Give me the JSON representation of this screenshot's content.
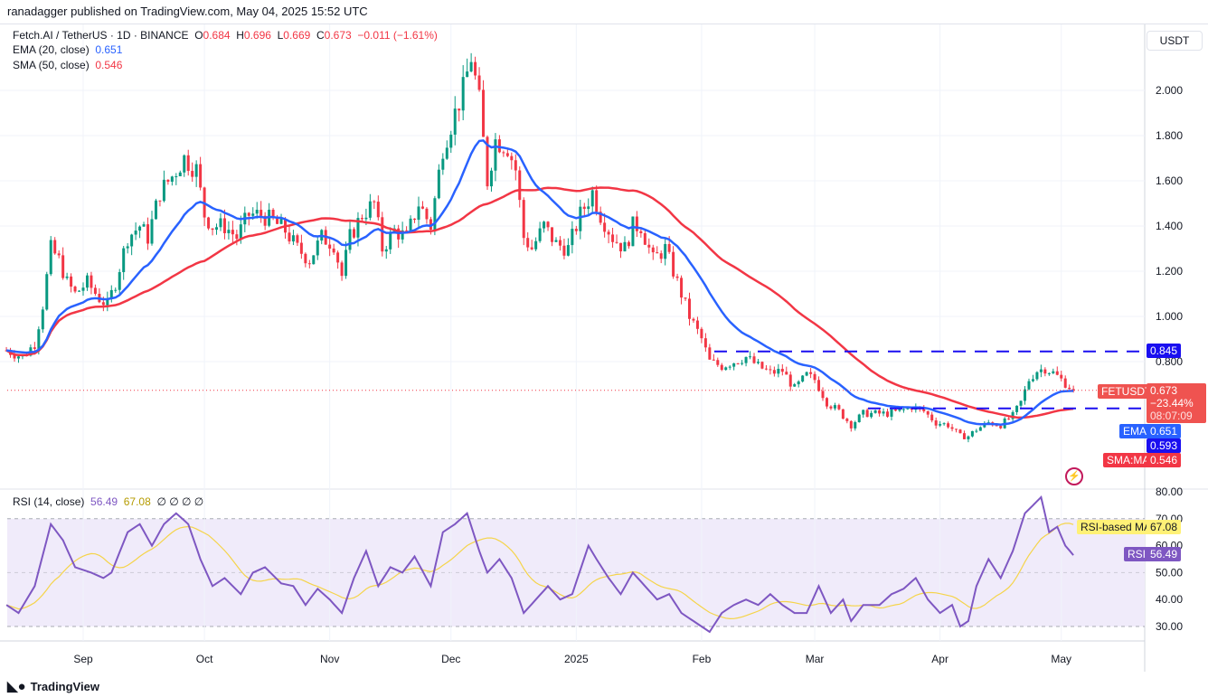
{
  "published": "ranadagger published on TradingView.com, May 04, 2025 15:52 UTC",
  "symbol_line": {
    "name": "Fetch.AI / TetherUS · 1D · BINANCE",
    "o_label": "O",
    "o": "0.684",
    "h_label": "H",
    "h": "0.696",
    "l_label": "L",
    "l": "0.669",
    "c_label": "C",
    "c": "0.673",
    "change": "−0.011 (−1.61%)"
  },
  "ema_legend": {
    "label": "EMA (20, close)",
    "value": "0.651"
  },
  "sma_legend": {
    "label": "SMA (50, close)",
    "value": "0.546"
  },
  "rsi_legend": {
    "label": "RSI (14, close)",
    "value": "56.49",
    "ma_value": "67.08",
    "extra": "∅ ∅ ∅ ∅"
  },
  "currency": "USDT",
  "tags": {
    "level_high": "0.845",
    "symbol": "FETUSDT",
    "price": "0.673",
    "change_pct": "−23.44%",
    "countdown": "08:07:09",
    "ema_label": "EMA",
    "ema": "0.651",
    "level_low": "0.593",
    "sma_label": "SMA:MA",
    "sma": "0.546",
    "rsi_ma_label": "RSI-based MA",
    "rsi_ma": "67.08",
    "rsi_label": "RSI",
    "rsi": "56.49"
  },
  "footer_logo": "TradingView",
  "colors": {
    "up": "#089981",
    "down": "#f23645",
    "ema": "#2962ff",
    "sma": "#f23645",
    "level": "#1a0ff0",
    "rsi": "#7e57c2",
    "rsi_ma": "#f5d44a",
    "rsi_band": "#f0ebfa"
  },
  "chart_data": [
    {
      "type": "candlestick",
      "pane": "price",
      "y_ticks": [
        "2.000",
        "1.800",
        "1.600",
        "1.400",
        "1.200",
        "1.000",
        "0.800"
      ],
      "ylim": [
        0.4,
        2.3
      ],
      "x_ticks": [
        [
          "2024-09-01",
          "Sep"
        ],
        [
          "2024-10-01",
          "Oct"
        ],
        [
          "2024-11-01",
          "Nov"
        ],
        [
          "2024-12-01",
          "Dec"
        ],
        [
          "2025-01-01",
          "2025"
        ],
        [
          "2025-02-01",
          "Feb"
        ],
        [
          "2025-03-01",
          "Mar"
        ],
        [
          "2025-04-01",
          "Apr"
        ],
        [
          "2025-05-01",
          "May"
        ]
      ],
      "horizontal_levels": [
        0.845,
        0.593
      ],
      "last_price": 0.673,
      "close_keypoints": [
        [
          "2024-08-13",
          0.85
        ],
        [
          "2024-08-17",
          0.82
        ],
        [
          "2024-08-20",
          0.88
        ],
        [
          "2024-08-22",
          1.05
        ],
        [
          "2024-08-24",
          1.3
        ],
        [
          "2024-08-26",
          1.25
        ],
        [
          "2024-08-28",
          1.15
        ],
        [
          "2024-08-30",
          1.1
        ],
        [
          "2024-09-02",
          1.15
        ],
        [
          "2024-09-05",
          1.08
        ],
        [
          "2024-09-07",
          1.05
        ],
        [
          "2024-09-09",
          1.15
        ],
        [
          "2024-09-12",
          1.35
        ],
        [
          "2024-09-15",
          1.4
        ],
        [
          "2024-09-17",
          1.35
        ],
        [
          "2024-09-20",
          1.55
        ],
        [
          "2024-09-23",
          1.62
        ],
        [
          "2024-09-26",
          1.7
        ],
        [
          "2024-09-29",
          1.65
        ],
        [
          "2024-10-01",
          1.45
        ],
        [
          "2024-10-03",
          1.4
        ],
        [
          "2024-10-06",
          1.4
        ],
        [
          "2024-10-09",
          1.35
        ],
        [
          "2024-10-12",
          1.45
        ],
        [
          "2024-10-15",
          1.45
        ],
        [
          "2024-10-18",
          1.42
        ],
        [
          "2024-10-21",
          1.38
        ],
        [
          "2024-10-24",
          1.3
        ],
        [
          "2024-10-27",
          1.25
        ],
        [
          "2024-10-30",
          1.35
        ],
        [
          "2024-11-02",
          1.32
        ],
        [
          "2024-11-04",
          1.18
        ],
        [
          "2024-11-06",
          1.35
        ],
        [
          "2024-11-09",
          1.45
        ],
        [
          "2024-11-12",
          1.5
        ],
        [
          "2024-11-14",
          1.3
        ],
        [
          "2024-11-17",
          1.38
        ],
        [
          "2024-11-20",
          1.35
        ],
        [
          "2024-11-23",
          1.5
        ],
        [
          "2024-11-26",
          1.4
        ],
        [
          "2024-11-29",
          1.75
        ],
        [
          "2024-12-02",
          1.9
        ],
        [
          "2024-12-04",
          2.0
        ],
        [
          "2024-12-06",
          2.15
        ],
        [
          "2024-12-08",
          1.95
        ],
        [
          "2024-12-10",
          1.6
        ],
        [
          "2024-12-12",
          1.78
        ],
        [
          "2024-12-15",
          1.75
        ],
        [
          "2024-12-17",
          1.65
        ],
        [
          "2024-12-19",
          1.35
        ],
        [
          "2024-12-21",
          1.3
        ],
        [
          "2024-12-24",
          1.4
        ],
        [
          "2024-12-27",
          1.32
        ],
        [
          "2024-12-30",
          1.3
        ],
        [
          "2025-01-02",
          1.45
        ],
        [
          "2025-01-05",
          1.55
        ],
        [
          "2025-01-07",
          1.45
        ],
        [
          "2025-01-10",
          1.35
        ],
        [
          "2025-01-13",
          1.3
        ],
        [
          "2025-01-15",
          1.4
        ],
        [
          "2025-01-17",
          1.4
        ],
        [
          "2025-01-20",
          1.25
        ],
        [
          "2025-01-23",
          1.3
        ],
        [
          "2025-01-26",
          1.15
        ],
        [
          "2025-01-29",
          1.0
        ],
        [
          "2025-02-01",
          0.9
        ],
        [
          "2025-02-03",
          0.8
        ],
        [
          "2025-02-06",
          0.78
        ],
        [
          "2025-02-09",
          0.8
        ],
        [
          "2025-02-12",
          0.82
        ],
        [
          "2025-02-15",
          0.78
        ],
        [
          "2025-02-18",
          0.75
        ],
        [
          "2025-02-21",
          0.76
        ],
        [
          "2025-02-24",
          0.68
        ],
        [
          "2025-02-27",
          0.74
        ],
        [
          "2025-03-01",
          0.72
        ],
        [
          "2025-03-04",
          0.62
        ],
        [
          "2025-03-07",
          0.58
        ],
        [
          "2025-03-10",
          0.52
        ],
        [
          "2025-03-13",
          0.57
        ],
        [
          "2025-03-16",
          0.57
        ],
        [
          "2025-03-19",
          0.57
        ],
        [
          "2025-03-22",
          0.58
        ],
        [
          "2025-03-25",
          0.6
        ],
        [
          "2025-03-28",
          0.58
        ],
        [
          "2025-03-31",
          0.53
        ],
        [
          "2025-04-03",
          0.52
        ],
        [
          "2025-04-06",
          0.47
        ],
        [
          "2025-04-08",
          0.47
        ],
        [
          "2025-04-10",
          0.5
        ],
        [
          "2025-04-13",
          0.53
        ],
        [
          "2025-04-16",
          0.52
        ],
        [
          "2025-04-19",
          0.56
        ],
        [
          "2025-04-21",
          0.62
        ],
        [
          "2025-04-23",
          0.72
        ],
        [
          "2025-04-25",
          0.76
        ],
        [
          "2025-04-27",
          0.77
        ],
        [
          "2025-04-29",
          0.75
        ],
        [
          "2025-05-01",
          0.72
        ],
        [
          "2025-05-04",
          0.673
        ]
      ],
      "series": [
        {
          "name": "EMA (20, close)",
          "period": 20
        },
        {
          "name": "SMA (50, close)",
          "period": 50
        }
      ]
    },
    {
      "type": "line",
      "pane": "rsi",
      "y_ticks": [
        "80.00",
        "70.00",
        "60.00",
        "50.00",
        "40.00",
        "30.00"
      ],
      "ylim": [
        25,
        82
      ],
      "bands": [
        30,
        50,
        70
      ],
      "rsi_keypoints": [
        [
          "2024-08-13",
          38
        ],
        [
          "2024-08-16",
          35
        ],
        [
          "2024-08-20",
          45
        ],
        [
          "2024-08-24",
          68
        ],
        [
          "2024-08-27",
          62
        ],
        [
          "2024-08-30",
          52
        ],
        [
          "2024-09-03",
          50
        ],
        [
          "2024-09-06",
          48
        ],
        [
          "2024-09-08",
          50
        ],
        [
          "2024-09-12",
          65
        ],
        [
          "2024-09-15",
          68
        ],
        [
          "2024-09-18",
          60
        ],
        [
          "2024-09-21",
          68
        ],
        [
          "2024-09-24",
          72
        ],
        [
          "2024-09-27",
          68
        ],
        [
          "2024-09-30",
          55
        ],
        [
          "2024-10-03",
          45
        ],
        [
          "2024-10-06",
          48
        ],
        [
          "2024-10-10",
          42
        ],
        [
          "2024-10-13",
          50
        ],
        [
          "2024-10-16",
          52
        ],
        [
          "2024-10-20",
          46
        ],
        [
          "2024-10-23",
          45
        ],
        [
          "2024-10-26",
          38
        ],
        [
          "2024-10-29",
          44
        ],
        [
          "2024-11-01",
          40
        ],
        [
          "2024-11-04",
          35
        ],
        [
          "2024-11-07",
          48
        ],
        [
          "2024-11-10",
          58
        ],
        [
          "2024-11-13",
          45
        ],
        [
          "2024-11-16",
          52
        ],
        [
          "2024-11-19",
          50
        ],
        [
          "2024-11-22",
          56
        ],
        [
          "2024-11-26",
          45
        ],
        [
          "2024-11-29",
          65
        ],
        [
          "2024-12-02",
          68
        ],
        [
          "2024-12-05",
          72
        ],
        [
          "2024-12-08",
          58
        ],
        [
          "2024-12-10",
          50
        ],
        [
          "2024-12-13",
          55
        ],
        [
          "2024-12-16",
          48
        ],
        [
          "2024-12-19",
          35
        ],
        [
          "2024-12-22",
          40
        ],
        [
          "2024-12-25",
          45
        ],
        [
          "2024-12-28",
          40
        ],
        [
          "2024-12-31",
          42
        ],
        [
          "2025-01-04",
          60
        ],
        [
          "2025-01-06",
          55
        ],
        [
          "2025-01-09",
          48
        ],
        [
          "2025-01-12",
          42
        ],
        [
          "2025-01-15",
          50
        ],
        [
          "2025-01-18",
          45
        ],
        [
          "2025-01-21",
          40
        ],
        [
          "2025-01-24",
          42
        ],
        [
          "2025-01-27",
          35
        ],
        [
          "2025-01-30",
          32
        ],
        [
          "2025-02-03",
          28
        ],
        [
          "2025-02-06",
          35
        ],
        [
          "2025-02-09",
          38
        ],
        [
          "2025-02-12",
          40
        ],
        [
          "2025-02-15",
          38
        ],
        [
          "2025-02-18",
          42
        ],
        [
          "2025-02-21",
          38
        ],
        [
          "2025-02-24",
          35
        ],
        [
          "2025-02-27",
          35
        ],
        [
          "2025-03-02",
          45
        ],
        [
          "2025-03-05",
          35
        ],
        [
          "2025-03-08",
          40
        ],
        [
          "2025-03-10",
          32
        ],
        [
          "2025-03-13",
          38
        ],
        [
          "2025-03-17",
          38
        ],
        [
          "2025-03-20",
          42
        ],
        [
          "2025-03-23",
          44
        ],
        [
          "2025-03-26",
          48
        ],
        [
          "2025-03-29",
          40
        ],
        [
          "2025-04-01",
          35
        ],
        [
          "2025-04-04",
          38
        ],
        [
          "2025-04-06",
          30
        ],
        [
          "2025-04-08",
          32
        ],
        [
          "2025-04-10",
          45
        ],
        [
          "2025-04-13",
          55
        ],
        [
          "2025-04-16",
          48
        ],
        [
          "2025-04-19",
          58
        ],
        [
          "2025-04-22",
          72
        ],
        [
          "2025-04-24",
          75
        ],
        [
          "2025-04-26",
          78
        ],
        [
          "2025-04-28",
          65
        ],
        [
          "2025-04-30",
          67
        ],
        [
          "2025-05-02",
          60
        ],
        [
          "2025-05-04",
          56.49
        ]
      ],
      "series": [
        {
          "name": "RSI"
        },
        {
          "name": "RSI-based MA",
          "period": 14
        }
      ]
    }
  ]
}
